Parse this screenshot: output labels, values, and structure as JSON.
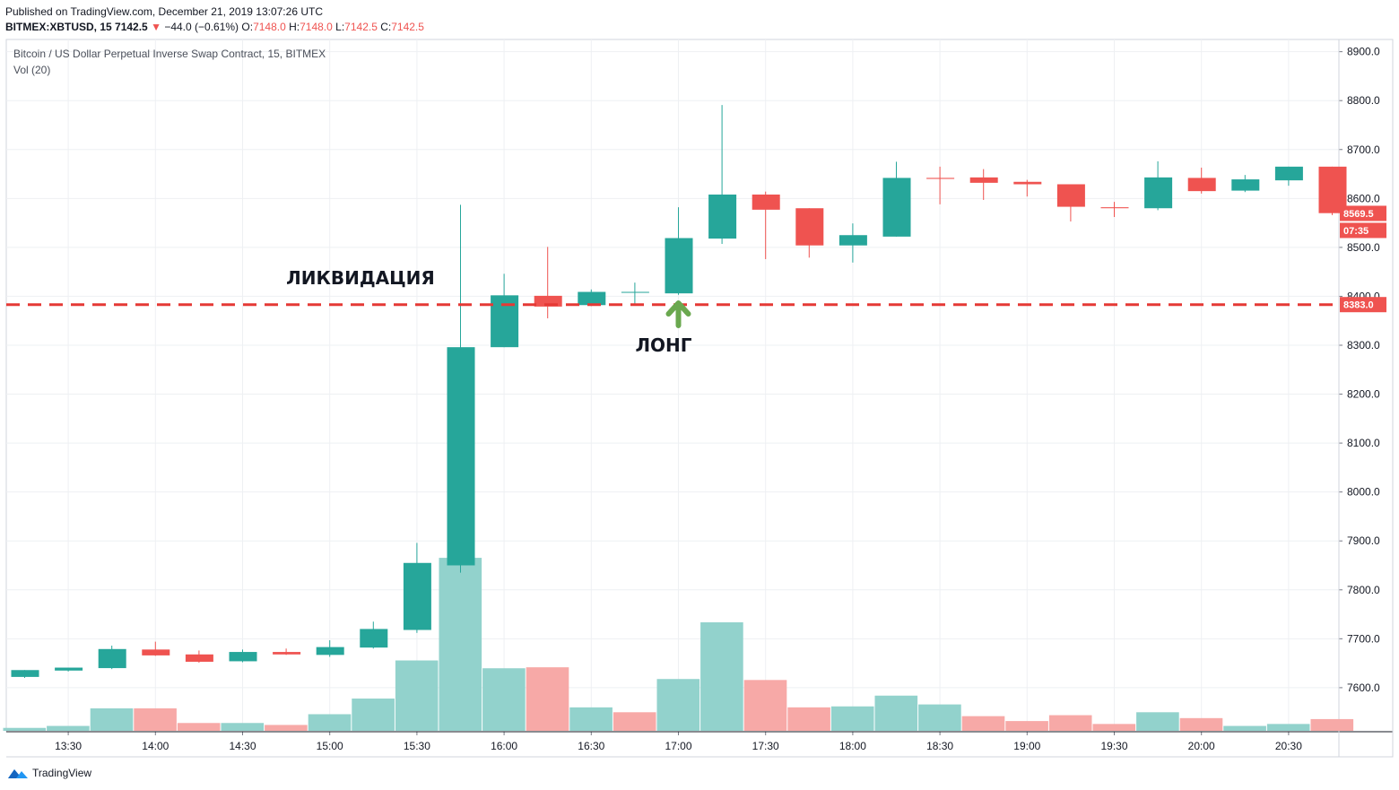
{
  "header": {
    "published": "Published on TradingView.com, December 21, 2019 13:07:26 UTC",
    "symbol": "BITMEX:XBTUSD, 15",
    "last": "7142.5",
    "change_arrow": "▼",
    "change": "−44.0 (−0.61%)",
    "o_label": "O:",
    "o_value": "7148.0",
    "h_label": "H:",
    "h_value": "7148.0",
    "l_label": "L:",
    "l_value": "7142.5",
    "c_label": "C:",
    "c_value": "7142.5"
  },
  "footer": {
    "brand": "TradingView",
    "logo_icon": "tradingview-logo-icon"
  },
  "colors": {
    "up": "#26a69a",
    "down": "#ef5350",
    "vol_up": "#92d2cc",
    "vol_down": "#f7a9a7",
    "grid": "#eef0f3",
    "arrow": "#6aa84f"
  },
  "chart_data": {
    "type": "candlestick",
    "title": "Bitcoin / US Dollar Perpetual Inverse Swap Contract, 15, BITMEX",
    "volume_label": "Vol (20)",
    "y_ticks": [
      7600,
      7700,
      7800,
      7900,
      8000,
      8100,
      8200,
      8300,
      8400,
      8500,
      8600,
      8700,
      8800,
      8900
    ],
    "y_tick_labels": [
      "7600.0",
      "7700.0",
      "7800.0",
      "7900.0",
      "8000.0",
      "8100.0",
      "8200.0",
      "8300.0",
      "8400.0",
      "8500.0",
      "8600.0",
      "8700.0",
      "8800.0",
      "8900.0"
    ],
    "ylim": [
      7510,
      8925
    ],
    "x_tick_labels": [
      "13:30",
      "14:00",
      "14:30",
      "15:00",
      "15:30",
      "16:00",
      "16:30",
      "17:00",
      "17:30",
      "18:00",
      "18:30",
      "19:00",
      "19:30",
      "20:00",
      "20:30"
    ],
    "candles": [
      {
        "t": "13:15",
        "o": 7622,
        "h": 7636,
        "l": 7620,
        "c": 7636
      },
      {
        "t": "13:30",
        "o": 7635,
        "h": 7641,
        "l": 7633,
        "c": 7641
      },
      {
        "t": "13:45",
        "o": 7640,
        "h": 7686,
        "l": 7638,
        "c": 7679
      },
      {
        "t": "14:00",
        "o": 7678,
        "h": 7694,
        "l": 7665,
        "c": 7666
      },
      {
        "t": "14:15",
        "o": 7668,
        "h": 7676,
        "l": 7651,
        "c": 7653
      },
      {
        "t": "14:30",
        "o": 7654,
        "h": 7678,
        "l": 7652,
        "c": 7673
      },
      {
        "t": "14:45",
        "o": 7673,
        "h": 7680,
        "l": 7667,
        "c": 7668
      },
      {
        "t": "15:00",
        "o": 7667,
        "h": 7697,
        "l": 7663,
        "c": 7683
      },
      {
        "t": "15:15",
        "o": 7682,
        "h": 7735,
        "l": 7680,
        "c": 7720
      },
      {
        "t": "15:30",
        "o": 7718,
        "h": 7896,
        "l": 7712,
        "c": 7855
      },
      {
        "t": "15:45",
        "o": 7850,
        "h": 8587,
        "l": 7835,
        "c": 8296
      },
      {
        "t": "16:00",
        "o": 8296,
        "h": 8446,
        "l": 8296,
        "c": 8402
      },
      {
        "t": "16:15",
        "o": 8401,
        "h": 8501,
        "l": 8355,
        "c": 8379
      },
      {
        "t": "16:30",
        "o": 8382,
        "h": 8414,
        "l": 8380,
        "c": 8409
      },
      {
        "t": "16:45",
        "o": 8409,
        "h": 8428,
        "l": 8382,
        "c": 8409
      },
      {
        "t": "17:00",
        "o": 8406,
        "h": 8582,
        "l": 8403,
        "c": 8519
      },
      {
        "t": "17:15",
        "o": 8518,
        "h": 8791,
        "l": 8507,
        "c": 8608
      },
      {
        "t": "17:30",
        "o": 8608,
        "h": 8614,
        "l": 8476,
        "c": 8577
      },
      {
        "t": "17:45",
        "o": 8580,
        "h": 8580,
        "l": 8479,
        "c": 8504
      },
      {
        "t": "18:00",
        "o": 8504,
        "h": 8549,
        "l": 8469,
        "c": 8525
      },
      {
        "t": "18:15",
        "o": 8522,
        "h": 8675,
        "l": 8522,
        "c": 8642
      },
      {
        "t": "18:30",
        "o": 8642,
        "h": 8665,
        "l": 8588,
        "c": 8640
      },
      {
        "t": "18:45",
        "o": 8643,
        "h": 8660,
        "l": 8597,
        "c": 8632
      },
      {
        "t": "19:00",
        "o": 8634,
        "h": 8638,
        "l": 8604,
        "c": 8629
      },
      {
        "t": "19:15",
        "o": 8629,
        "h": 8629,
        "l": 8553,
        "c": 8583
      },
      {
        "t": "19:30",
        "o": 8582,
        "h": 8593,
        "l": 8562,
        "c": 8580
      },
      {
        "t": "19:45",
        "o": 8580,
        "h": 8676,
        "l": 8576,
        "c": 8643
      },
      {
        "t": "20:00",
        "o": 8642,
        "h": 8663,
        "l": 8610,
        "c": 8615
      },
      {
        "t": "20:15",
        "o": 8616,
        "h": 8648,
        "l": 8613,
        "c": 8639
      },
      {
        "t": "20:30",
        "o": 8637,
        "h": 8665,
        "l": 8626,
        "c": 8665
      },
      {
        "t": "20:45",
        "o": 8665,
        "h": 8665,
        "l": 8566,
        "c": 8570
      }
    ],
    "volume": [
      {
        "v": 6,
        "dir": "up"
      },
      {
        "v": 10,
        "dir": "up"
      },
      {
        "v": 46,
        "dir": "up"
      },
      {
        "v": 46,
        "dir": "down"
      },
      {
        "v": 16,
        "dir": "down"
      },
      {
        "v": 16,
        "dir": "up"
      },
      {
        "v": 12,
        "dir": "down"
      },
      {
        "v": 34,
        "dir": "up"
      },
      {
        "v": 66,
        "dir": "up"
      },
      {
        "v": 144,
        "dir": "up"
      },
      {
        "v": 354,
        "dir": "up"
      },
      {
        "v": 128,
        "dir": "up"
      },
      {
        "v": 130,
        "dir": "down"
      },
      {
        "v": 48,
        "dir": "up"
      },
      {
        "v": 38,
        "dir": "down"
      },
      {
        "v": 106,
        "dir": "up"
      },
      {
        "v": 222,
        "dir": "up"
      },
      {
        "v": 104,
        "dir": "down"
      },
      {
        "v": 48,
        "dir": "down"
      },
      {
        "v": 50,
        "dir": "up"
      },
      {
        "v": 72,
        "dir": "up"
      },
      {
        "v": 54,
        "dir": "up"
      },
      {
        "v": 30,
        "dir": "down"
      },
      {
        "v": 20,
        "dir": "down"
      },
      {
        "v": 32,
        "dir": "down"
      },
      {
        "v": 14,
        "dir": "down"
      },
      {
        "v": 38,
        "dir": "up"
      },
      {
        "v": 26,
        "dir": "down"
      },
      {
        "v": 10,
        "dir": "up"
      },
      {
        "v": 14,
        "dir": "up"
      },
      {
        "v": 24,
        "dir": "down"
      }
    ],
    "liquidation_level": 8383.0,
    "liquidation_label": "8383.0",
    "price_label": "8569.5",
    "countdown_label": "07:35",
    "annotations": [
      {
        "text": "ЛИКВИДАЦИЯ"
      },
      {
        "text": "ЛОНГ"
      }
    ],
    "grid": true
  }
}
